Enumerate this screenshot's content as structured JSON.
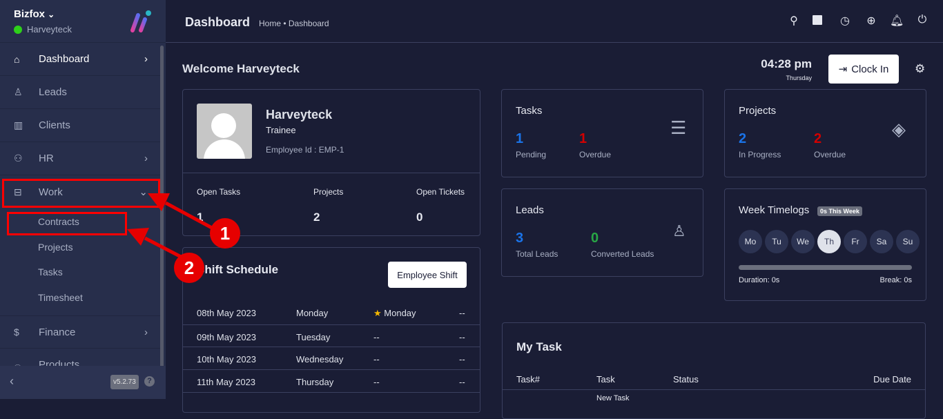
{
  "sidebar": {
    "brand": "Bizfox",
    "user": "Harveyteck",
    "version": "v5.2.73",
    "items": [
      {
        "label": "Dashboard",
        "icon": "home-icon"
      },
      {
        "label": "Leads",
        "icon": "user-icon"
      },
      {
        "label": "Clients",
        "icon": "building-icon"
      },
      {
        "label": "HR",
        "icon": "users-icon"
      },
      {
        "label": "Work",
        "icon": "briefcase-icon"
      },
      {
        "label": "Finance",
        "icon": "dollar-icon"
      },
      {
        "label": "Products",
        "icon": "basket-icon"
      }
    ],
    "work_sub": [
      "Contracts",
      "Projects",
      "Tasks",
      "Timesheet"
    ]
  },
  "header": {
    "title": "Dashboard",
    "breadcrumb": "Home • Dashboard"
  },
  "welcome": "Welcome Harveyteck",
  "clock": {
    "time": "04:28 pm",
    "day": "Thursday",
    "button": "Clock In"
  },
  "profile": {
    "name": "Harveyteck",
    "role": "Trainee",
    "employee_id": "Employee Id : EMP-1",
    "stats": [
      {
        "label": "Open Tasks",
        "value": "1"
      },
      {
        "label": "Projects",
        "value": "2"
      },
      {
        "label": "Open Tickets",
        "value": "0"
      }
    ]
  },
  "tasks": {
    "title": "Tasks",
    "pending": "1",
    "pending_label": "Pending",
    "overdue": "1",
    "overdue_label": "Overdue"
  },
  "projects": {
    "title": "Projects",
    "in_progress": "2",
    "in_progress_label": "In Progress",
    "overdue": "2",
    "overdue_label": "Overdue"
  },
  "leads": {
    "title": "Leads",
    "total": "3",
    "total_label": "Total Leads",
    "converted": "0",
    "converted_label": "Converted Leads"
  },
  "timelogs": {
    "title": "Week Timelogs",
    "badge": "0s This Week",
    "days": [
      "Mo",
      "Tu",
      "We",
      "Th",
      "Fr",
      "Sa",
      "Su"
    ],
    "active_day": "Th",
    "duration": "Duration: 0s",
    "break": "Break: 0s"
  },
  "shift": {
    "title": "Shift Schedule",
    "button": "Employee Shift",
    "rows": [
      [
        "08th May 2023",
        "Monday",
        "Monday",
        "--"
      ],
      [
        "09th May 2023",
        "Tuesday",
        "--",
        "--"
      ],
      [
        "10th May 2023",
        "Wednesday",
        "--",
        "--"
      ],
      [
        "11th May 2023",
        "Thursday",
        "--",
        "--"
      ]
    ]
  },
  "my_task": {
    "title": "My Task",
    "columns": [
      "Task#",
      "Task",
      "Status",
      "Due Date"
    ],
    "first_task": "New Task"
  },
  "annotations": [
    "1",
    "2"
  ],
  "colors": {
    "blue": "#1a73e8",
    "red": "#d30000",
    "green": "#28a745",
    "annotation": "#e60000"
  }
}
